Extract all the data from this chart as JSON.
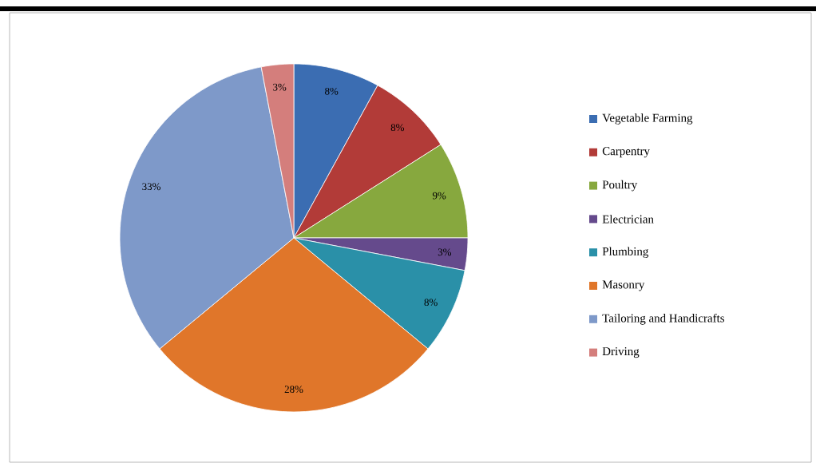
{
  "chart_data": {
    "type": "pie",
    "categories": [
      "Vegetable Farming",
      "Carpentry",
      "Poultry",
      "Electrician",
      "Plumbing",
      "Masonry",
      "Tailoring and Handicrafts",
      "Driving"
    ],
    "values": [
      8,
      8,
      9,
      3,
      8,
      28,
      33,
      3
    ],
    "colors": [
      "#3b6db2",
      "#b23b38",
      "#87a83e",
      "#654a8c",
      "#2a90a8",
      "#e0762a",
      "#7e99c9",
      "#d47e7c"
    ],
    "value_labels": [
      "8%",
      "8%",
      "9%",
      "3%",
      "8%",
      "28%",
      "33%",
      "3%"
    ],
    "legend": "right"
  }
}
